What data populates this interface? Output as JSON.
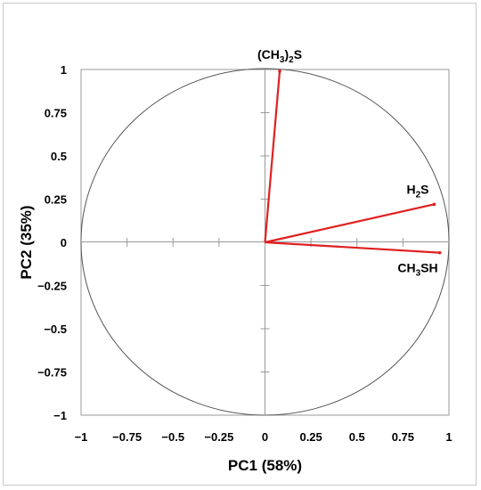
{
  "chart_data": {
    "type": "scatter",
    "subtype": "pca-correlation-circle",
    "xlabel": "PC1 (58%)",
    "ylabel": "PC2 (35%)",
    "xlim": [
      -1,
      1
    ],
    "ylim": [
      -1,
      1
    ],
    "x_ticks": [
      "−1",
      "−0.75",
      "−0.5",
      "−0.25",
      "0",
      "0.25",
      "0.5",
      "0.75",
      "1"
    ],
    "y_ticks": [
      "1",
      "0.75",
      "0.5",
      "0.25",
      "0",
      "−0.25",
      "−0.5",
      "−0.75",
      "−1"
    ],
    "grid": false,
    "unit_circle": true,
    "vector_color": "#e02020",
    "vectors": [
      {
        "label_main": "(CH",
        "label_sub1": "3",
        "label_mid": ")",
        "label_sub2": "2",
        "label_tail": "S",
        "x": 0.08,
        "y": 0.99
      },
      {
        "label_main": "H",
        "label_sub1": "2",
        "label_mid": "S",
        "label_sub2": "",
        "label_tail": "",
        "x": 0.92,
        "y": 0.22
      },
      {
        "label_main": "CH",
        "label_sub1": "3",
        "label_mid": "SH",
        "label_sub2": "",
        "label_tail": "",
        "x": 0.95,
        "y": -0.06
      }
    ]
  }
}
